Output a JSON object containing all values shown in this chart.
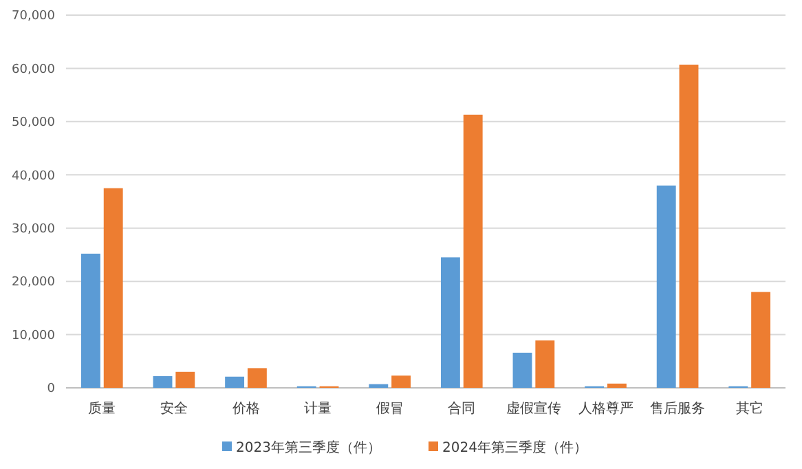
{
  "chart_data": {
    "type": "bar",
    "categories": [
      "质量",
      "安全",
      "价格",
      "计量",
      "假冒",
      "合同",
      "虚假宣传",
      "人格尊严",
      "售后服务",
      "其它"
    ],
    "series": [
      {
        "name": "2023年第三季度（件）",
        "color": "#5b9bd5",
        "values": [
          25200,
          2200,
          2100,
          300,
          700,
          24500,
          6600,
          300,
          38000,
          300
        ]
      },
      {
        "name": "2024年第三季度（件）",
        "color": "#ed7d31",
        "values": [
          37500,
          3000,
          3700,
          300,
          2300,
          51300,
          8900,
          800,
          60700,
          18000
        ]
      }
    ],
    "ylim": [
      0,
      70000
    ],
    "yticks": [
      {
        "value": 0,
        "label": "0"
      },
      {
        "value": 10000,
        "label": "10,000"
      },
      {
        "value": 20000,
        "label": "20,000"
      },
      {
        "value": 30000,
        "label": "30,000"
      },
      {
        "value": 40000,
        "label": "40,000"
      },
      {
        "value": 50000,
        "label": "50,000"
      },
      {
        "value": 60000,
        "label": "60,000"
      },
      {
        "value": 70000,
        "label": "70,000"
      }
    ],
    "grid": "y",
    "legend": "bottom"
  }
}
